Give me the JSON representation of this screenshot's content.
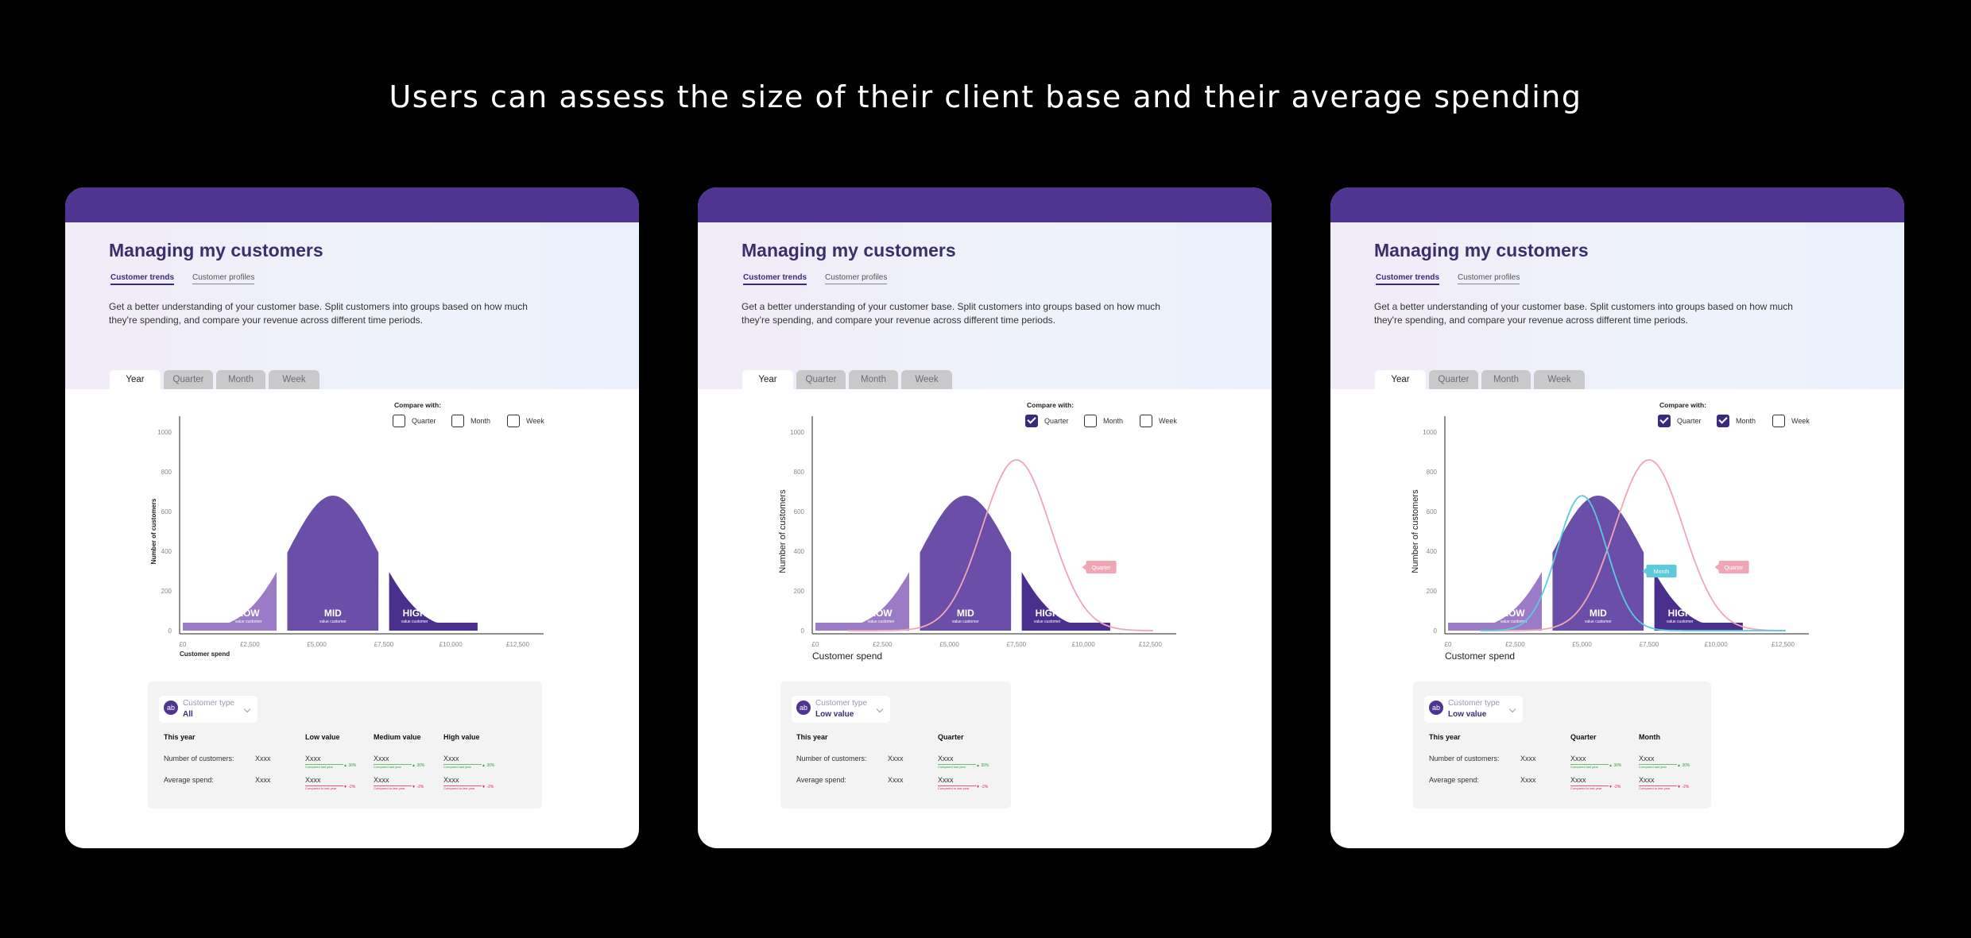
{
  "headline": "Users can assess the size of their client base and their average spending",
  "colors": {
    "brand_bar": "#4f3591",
    "low": "#9b7ac6",
    "mid": "#6a4ea8",
    "high": "#4a2f8d",
    "quarter_line": "#f0a6b4",
    "month_line": "#5cc9dc",
    "positive": "#2ea043",
    "negative": "#e0245e"
  },
  "screens": [
    {
      "page_title": "Managing my customers",
      "subtabs": [
        "Customer trends",
        "Customer profiles"
      ],
      "intro": "Get a better understanding of your customer base. Split customers into groups based on how much they're spending, and compare your revenue across different time periods.",
      "period_tabs": [
        "Year",
        "Quarter",
        "Month",
        "Week"
      ],
      "compare_label": "Compare with:",
      "compare_options": [
        {
          "label": "Quarter",
          "checked": false
        },
        {
          "label": "Month",
          "checked": false
        },
        {
          "label": "Week",
          "checked": false
        }
      ],
      "chart_data": {
        "type": "area",
        "y_label": "Number of customers",
        "x_label": "Customer spend",
        "y_ticks": [
          "0",
          "200",
          "400",
          "600",
          "800",
          "1000"
        ],
        "x_ticks": [
          "£0",
          "£2,500",
          "£5,000",
          "£7,500",
          "£10,000",
          "£12,500"
        ],
        "ylim": [
          0,
          1000
        ],
        "segments": [
          {
            "label": "LOW",
            "sub": "value customer",
            "range": [
              0,
              3500
            ]
          },
          {
            "label": "MID",
            "sub": "value customer",
            "range": [
              3900,
              7300
            ]
          },
          {
            "label": "HIGH",
            "sub": "value customer",
            "range": [
              7700,
              11000
            ]
          }
        ],
        "comparison_lines": []
      },
      "customer_type": {
        "label": "Customer type",
        "value": "All",
        "avatar": "ab"
      },
      "table": {
        "headers": [
          "This year",
          "Low value",
          "Medium value",
          "High value"
        ],
        "rows": [
          {
            "label": "Number of customers:",
            "cells": [
              "Xxxx",
              "Xxxx",
              "Xxxx",
              "Xxxx"
            ],
            "changes": [
              "",
              "▲ 30%",
              "▲ 30%",
              "▲ 30%"
            ],
            "compared_text": "Compared last year"
          },
          {
            "label": "Average spend:",
            "cells": [
              "Xxxx",
              "Xxxx",
              "Xxxx",
              "Xxxx"
            ],
            "changes": [
              "",
              "▼ -2%",
              "▼ -2%",
              "▼ -2%"
            ],
            "compared_text": "Compared to last year"
          }
        ]
      }
    },
    {
      "page_title": "Managing my customers",
      "subtabs": [
        "Customer trends",
        "Customer profiles"
      ],
      "intro": "Get a better understanding of your customer base. Split customers into groups based on how much they're spending, and compare your revenue across different time periods.",
      "period_tabs": [
        "Year",
        "Quarter",
        "Month",
        "Week"
      ],
      "compare_label": "Compare with:",
      "compare_options": [
        {
          "label": "Quarter",
          "checked": true
        },
        {
          "label": "Month",
          "checked": false
        },
        {
          "label": "Week",
          "checked": false
        }
      ],
      "chart_data": {
        "type": "area",
        "y_label": "Number of customers",
        "x_label": "Customer spend",
        "y_ticks": [
          "0",
          "200",
          "400",
          "600",
          "800",
          "1000"
        ],
        "x_ticks": [
          "£0",
          "£2,500",
          "£5,000",
          "£7,500",
          "£10,000",
          "£12,500"
        ],
        "ylim": [
          0,
          1000
        ],
        "segments": [
          {
            "label": "LOW",
            "sub": "value customer",
            "range": [
              0,
              3500
            ]
          },
          {
            "label": "MID",
            "sub": "value customer",
            "range": [
              3900,
              7300
            ]
          },
          {
            "label": "HIGH",
            "sub": "value customer",
            "range": [
              7700,
              11000
            ]
          }
        ],
        "comparison_lines": [
          {
            "name": "Quarter",
            "center": 7500,
            "sigma": 1800,
            "peak": 860,
            "color": "#f0a6b4"
          }
        ]
      },
      "customer_type": {
        "label": "Customer type",
        "value": "Low value",
        "avatar": "ab"
      },
      "table": {
        "headers": [
          "This year",
          "Quarter"
        ],
        "rows": [
          {
            "label": "Number of customers:",
            "cells": [
              "Xxxx",
              "Xxxx"
            ],
            "changes": [
              "",
              "▲ 30%"
            ],
            "compared_text": "Compared last year"
          },
          {
            "label": "Average spend:",
            "cells": [
              "Xxxx",
              "Xxxx"
            ],
            "changes": [
              "",
              "▼ -2%"
            ],
            "compared_text": "Compared to last year"
          }
        ]
      }
    },
    {
      "page_title": "Managing my customers",
      "subtabs": [
        "Customer trends",
        "Customer profiles"
      ],
      "intro": "Get a better understanding of your customer base. Split customers into groups based on how much they're spending, and compare your revenue across different time periods.",
      "period_tabs": [
        "Year",
        "Quarter",
        "Month",
        "Week"
      ],
      "compare_label": "Compare with:",
      "compare_options": [
        {
          "label": "Quarter",
          "checked": true
        },
        {
          "label": "Month",
          "checked": true
        },
        {
          "label": "Week",
          "checked": false
        }
      ],
      "chart_data": {
        "type": "area",
        "y_label": "Number of customers",
        "x_label": "Customer spend",
        "y_ticks": [
          "0",
          "200",
          "400",
          "600",
          "800",
          "1000"
        ],
        "x_ticks": [
          "£0",
          "£2,500",
          "£5,000",
          "£7,500",
          "£10,000",
          "£12,500"
        ],
        "ylim": [
          0,
          1000
        ],
        "segments": [
          {
            "label": "LOW",
            "sub": "value customer",
            "range": [
              0,
              3500
            ]
          },
          {
            "label": "MID",
            "sub": "value customer",
            "range": [
              3900,
              7300
            ]
          },
          {
            "label": "HIGH",
            "sub": "value customer",
            "range": [
              7700,
              11000
            ]
          }
        ],
        "comparison_lines": [
          {
            "name": "Quarter",
            "center": 7500,
            "sigma": 1800,
            "peak": 860,
            "color": "#f0a6b4"
          },
          {
            "name": "Month",
            "center": 5000,
            "sigma": 1300,
            "peak": 680,
            "color": "#5cc9dc"
          }
        ]
      },
      "customer_type": {
        "label": "Customer type",
        "value": "Low value",
        "avatar": "ab"
      },
      "table": {
        "headers": [
          "This year",
          "Quarter",
          "Month"
        ],
        "rows": [
          {
            "label": "Number of customers:",
            "cells": [
              "Xxxx",
              "Xxxx",
              "Xxxx"
            ],
            "changes": [
              "",
              "▲ 30%",
              "▲ 30%"
            ],
            "compared_text": "Compared last year"
          },
          {
            "label": "Average spend:",
            "cells": [
              "Xxxx",
              "Xxxx",
              "Xxxx"
            ],
            "changes": [
              "",
              "▼ -2%",
              "▼ -2%"
            ],
            "compared_text": "Compared to last year"
          }
        ]
      }
    }
  ]
}
